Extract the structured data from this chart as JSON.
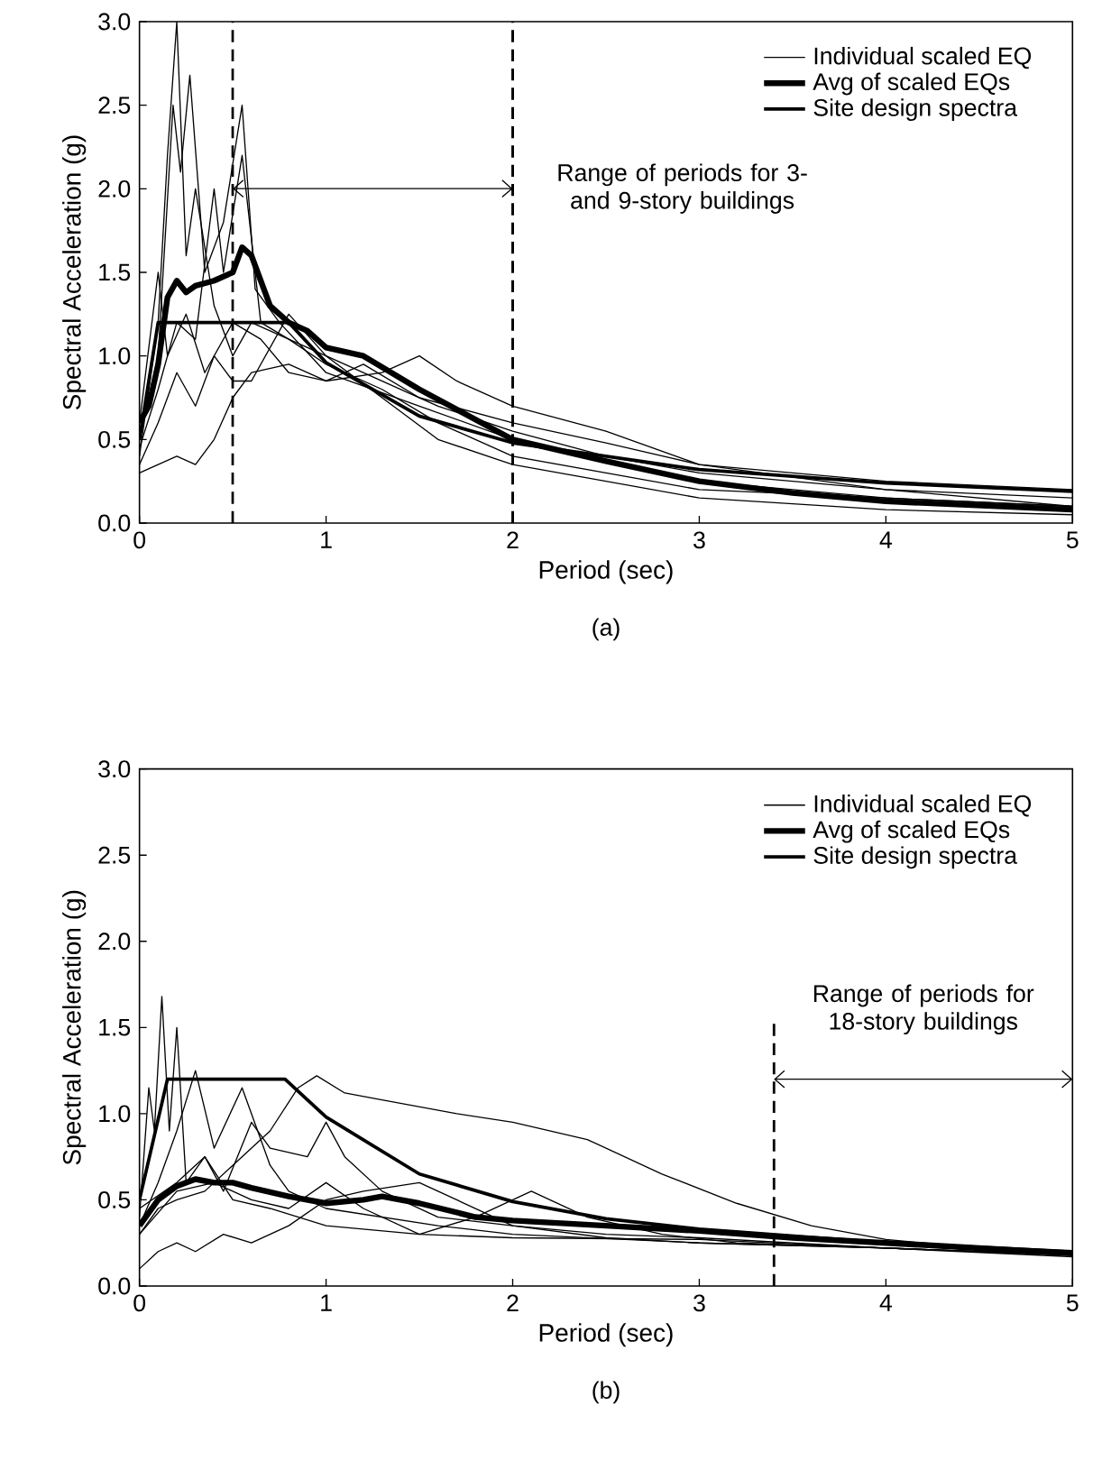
{
  "chart_data": [
    {
      "type": "line",
      "title": "(a)",
      "xlabel": "Period (sec)",
      "ylabel": "Spectral Acceleration (g)",
      "xlim": [
        0,
        5
      ],
      "ylim": [
        0,
        3
      ],
      "xticks": [
        0,
        1,
        2,
        3,
        4,
        5
      ],
      "yticks": [
        {
          "value": 0,
          "label": "0.0"
        },
        {
          "value": 0.5,
          "label": "0.5"
        },
        {
          "value": 1,
          "label": "1.0"
        },
        {
          "value": 1.5,
          "label": "1.5"
        },
        {
          "value": 2,
          "label": "2.0"
        },
        {
          "value": 2.5,
          "label": "2.5"
        },
        {
          "value": 3,
          "label": "3.0"
        }
      ],
      "legend": "top right",
      "ref_lines": [
        {
          "axis": "x",
          "value": 0.5,
          "line_style": "dashed"
        },
        {
          "axis": "x",
          "value": 2,
          "line_style": "dashed"
        }
      ],
      "annotations": [
        "Range of periods for 3- and 9-story buildings"
      ],
      "series": [
        {
          "name": "Individual scaled EQ",
          "color": "#000000",
          "x": [
            0,
            0.1,
            0.15,
            0.2,
            0.25,
            0.3,
            0.4,
            0.5,
            0.6,
            0.8,
            1.0,
            1.3,
            1.6,
            2.0,
            2.5,
            3,
            4,
            5
          ],
          "values": [
            0.4,
            1.2,
            2.2,
            3.0,
            1.6,
            2.0,
            1.3,
            1.0,
            1.2,
            1.1,
            0.95,
            0.8,
            0.6,
            0.4,
            0.3,
            0.2,
            0.15,
            0.1
          ]
        },
        {
          "name": "Avg of scaled EQs",
          "color": "#000000",
          "x": [
            0,
            0.05,
            0.1,
            0.15,
            0.2,
            0.25,
            0.3,
            0.4,
            0.5,
            0.55,
            0.6,
            0.7,
            0.8,
            0.9,
            1.0,
            1.2,
            1.5,
            2.0,
            2.5,
            3,
            3.5,
            4,
            5
          ],
          "values": [
            0.6,
            0.7,
            0.95,
            1.35,
            1.45,
            1.38,
            1.42,
            1.45,
            1.5,
            1.65,
            1.6,
            1.3,
            1.2,
            1.15,
            1.05,
            1.0,
            0.8,
            0.5,
            0.37,
            0.25,
            0.18,
            0.13,
            0.08
          ]
        },
        {
          "name": "Site design spectra",
          "color": "#000000",
          "x": [
            0,
            0.1,
            0.8,
            1.0,
            1.5,
            2,
            3,
            4,
            5
          ],
          "values": [
            0.5,
            1.2,
            1.2,
            0.96,
            0.64,
            0.48,
            0.32,
            0.24,
            0.19
          ]
        },
        {
          "color": "#000000",
          "x": [
            0,
            0.1,
            0.18,
            0.22,
            0.27,
            0.35,
            0.45,
            0.55,
            0.62,
            0.75,
            1.0,
            1.5,
            2.0,
            3,
            4,
            5
          ],
          "values": [
            0.5,
            1.0,
            2.5,
            2.1,
            2.68,
            1.5,
            1.8,
            2.5,
            1.4,
            1.2,
            0.9,
            0.7,
            0.5,
            0.25,
            0.15,
            0.1
          ]
        },
        {
          "color": "#000000",
          "x": [
            0,
            0.1,
            0.2,
            0.3,
            0.4,
            0.5,
            0.6,
            0.8,
            1.0,
            1.3,
            1.5,
            1.7,
            2.0,
            2.5,
            3,
            4,
            5
          ],
          "values": [
            0.3,
            0.35,
            0.4,
            0.35,
            0.5,
            0.75,
            0.9,
            0.95,
            0.85,
            0.9,
            1.0,
            0.85,
            0.7,
            0.55,
            0.35,
            0.2,
            0.1
          ]
        },
        {
          "color": "#000000",
          "x": [
            0,
            0.1,
            0.2,
            0.3,
            0.4,
            0.45,
            0.55,
            0.65,
            0.8,
            1.0,
            1.3,
            1.6,
            2.0,
            2.5,
            3,
            4,
            5
          ],
          "values": [
            0.45,
            0.8,
            1.2,
            1.1,
            2.0,
            1.5,
            2.2,
            1.2,
            1.1,
            1.0,
            0.85,
            0.7,
            0.55,
            0.4,
            0.3,
            0.2,
            0.15
          ]
        },
        {
          "color": "#000000",
          "x": [
            0,
            0.1,
            0.15,
            0.25,
            0.35,
            0.5,
            0.65,
            0.8,
            1.0,
            1.2,
            1.5,
            2.0,
            2.5,
            3,
            4,
            5
          ],
          "values": [
            0.6,
            1.5,
            1.0,
            1.25,
            0.9,
            1.2,
            1.1,
            0.9,
            0.85,
            0.95,
            0.75,
            0.6,
            0.48,
            0.35,
            0.25,
            0.2
          ]
        },
        {
          "color": "#000000",
          "x": [
            0,
            0.1,
            0.2,
            0.3,
            0.4,
            0.5,
            0.6,
            0.8,
            1.0,
            1.3,
            1.6,
            2.0,
            2.5,
            3,
            4,
            5
          ],
          "values": [
            0.35,
            0.6,
            0.9,
            0.7,
            1.0,
            0.85,
            0.85,
            1.25,
            1.0,
            0.75,
            0.5,
            0.35,
            0.25,
            0.15,
            0.08,
            0.05
          ]
        }
      ]
    },
    {
      "type": "line",
      "title": "(b)",
      "xlabel": "Period (sec)",
      "ylabel": "Spectral Acceleration (g)",
      "xlim": [
        0,
        5
      ],
      "ylim": [
        0,
        3
      ],
      "xticks": [
        0,
        1,
        2,
        3,
        4,
        5
      ],
      "yticks": [
        {
          "value": 0,
          "label": "0.0"
        },
        {
          "value": 0.5,
          "label": "0.5"
        },
        {
          "value": 1,
          "label": "1.0"
        },
        {
          "value": 1.5,
          "label": "1.5"
        },
        {
          "value": 2,
          "label": "2.0"
        },
        {
          "value": 2.5,
          "label": "2.5"
        },
        {
          "value": 3,
          "label": "3.0"
        }
      ],
      "legend": "top right",
      "ref_lines": [
        {
          "axis": "x",
          "value": 3.4,
          "line_style": "dashed"
        }
      ],
      "annotations": [
        "Range of periods for 18-story buildings"
      ],
      "series": [
        {
          "name": "Individual scaled EQ",
          "color": "#000000",
          "x": [
            0,
            0.1,
            0.2,
            0.35,
            0.5,
            0.7,
            0.85,
            0.95,
            1.1,
            1.3,
            1.7,
            2.0,
            2.4,
            2.8,
            3.2,
            3.6,
            4,
            4.5,
            5
          ],
          "values": [
            0.3,
            0.45,
            0.5,
            0.55,
            0.7,
            0.9,
            1.15,
            1.22,
            1.12,
            1.08,
            1.0,
            0.95,
            0.85,
            0.65,
            0.48,
            0.35,
            0.27,
            0.22,
            0.2
          ]
        },
        {
          "name": "Avg of scaled EQs",
          "color": "#000000",
          "x": [
            0,
            0.1,
            0.2,
            0.3,
            0.4,
            0.5,
            0.6,
            0.8,
            1.0,
            1.2,
            1.3,
            1.5,
            1.8,
            2.0,
            2.5,
            3,
            3.5,
            4,
            4.5,
            5
          ],
          "values": [
            0.35,
            0.5,
            0.58,
            0.62,
            0.6,
            0.6,
            0.57,
            0.52,
            0.48,
            0.5,
            0.52,
            0.48,
            0.4,
            0.38,
            0.35,
            0.32,
            0.28,
            0.25,
            0.22,
            0.19
          ]
        },
        {
          "name": "Site design spectra",
          "color": "#000000",
          "x": [
            0,
            0.15,
            0.78,
            1.0,
            1.5,
            2,
            2.5,
            3,
            4,
            5
          ],
          "values": [
            0.5,
            1.2,
            1.2,
            0.98,
            0.65,
            0.49,
            0.39,
            0.33,
            0.25,
            0.2
          ]
        },
        {
          "color": "#000000",
          "x": [
            0,
            0.05,
            0.08,
            0.12,
            0.16,
            0.2,
            0.25,
            0.35,
            0.5,
            0.7,
            1.0,
            1.5,
            2,
            3,
            4,
            5
          ],
          "values": [
            0.4,
            1.15,
            0.9,
            1.68,
            0.9,
            1.5,
            0.6,
            0.75,
            0.5,
            0.45,
            0.35,
            0.3,
            0.28,
            0.27,
            0.22,
            0.18
          ]
        },
        {
          "color": "#000000",
          "x": [
            0,
            0.1,
            0.2,
            0.3,
            0.4,
            0.55,
            0.7,
            0.8,
            1.0,
            1.3,
            1.6,
            2,
            3,
            4,
            5
          ],
          "values": [
            0.35,
            0.6,
            0.9,
            1.25,
            0.8,
            1.15,
            0.7,
            0.55,
            0.45,
            0.4,
            0.35,
            0.3,
            0.25,
            0.22,
            0.18
          ]
        },
        {
          "color": "#000000",
          "x": [
            0,
            0.2,
            0.35,
            0.45,
            0.6,
            0.7,
            0.9,
            1.0,
            1.1,
            1.3,
            1.6,
            2,
            2.5,
            3,
            4,
            5
          ],
          "values": [
            0.45,
            0.6,
            0.75,
            0.55,
            0.95,
            0.8,
            0.75,
            0.95,
            0.75,
            0.55,
            0.4,
            0.35,
            0.3,
            0.28,
            0.22,
            0.18
          ]
        },
        {
          "color": "#000000",
          "x": [
            0,
            0.1,
            0.2,
            0.3,
            0.45,
            0.6,
            0.8,
            1.0,
            1.2,
            1.5,
            1.7,
            2.0,
            2.5,
            3,
            4,
            5
          ],
          "values": [
            0.1,
            0.2,
            0.25,
            0.2,
            0.3,
            0.25,
            0.35,
            0.5,
            0.55,
            0.6,
            0.5,
            0.35,
            0.28,
            0.25,
            0.22,
            0.17
          ]
        },
        {
          "color": "#000000",
          "x": [
            0,
            0.2,
            0.4,
            0.6,
            0.8,
            1.0,
            1.2,
            1.5,
            1.8,
            2.1,
            2.4,
            2.8,
            3.2,
            4,
            5
          ],
          "values": [
            0.3,
            0.55,
            0.6,
            0.5,
            0.45,
            0.6,
            0.45,
            0.3,
            0.4,
            0.55,
            0.4,
            0.3,
            0.25,
            0.22,
            0.18
          ]
        }
      ]
    }
  ]
}
